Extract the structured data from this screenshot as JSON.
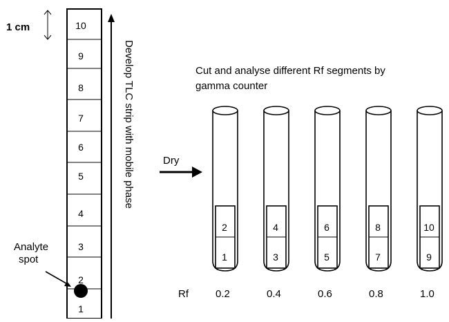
{
  "scale_label": "1 cm",
  "strip_segments": [
    "10",
    "9",
    "8",
    "7",
    "6",
    "5",
    "4",
    "3",
    "2",
    "1"
  ],
  "analyte_label": [
    "Analyte",
    "spot"
  ],
  "develop_label": "Develop  TLC strip with mobile phase",
  "dry_label": "Dry",
  "cut_label_line1": "Cut and analyse different Rf  segments by",
  "cut_label_line2": "gamma counter",
  "tubes": [
    {
      "top": "2",
      "bottom": "1",
      "rf": "0.2"
    },
    {
      "top": "4",
      "bottom": "3",
      "rf": "0.4"
    },
    {
      "top": "6",
      "bottom": "5",
      "rf": "0.6"
    },
    {
      "top": "8",
      "bottom": "7",
      "rf": "0.8"
    },
    {
      "top": "10",
      "bottom": "9",
      "rf": "1.0"
    }
  ],
  "rf_axis_label": "Rf",
  "colors": {
    "stroke": "#000000",
    "background": "#ffffff"
  }
}
